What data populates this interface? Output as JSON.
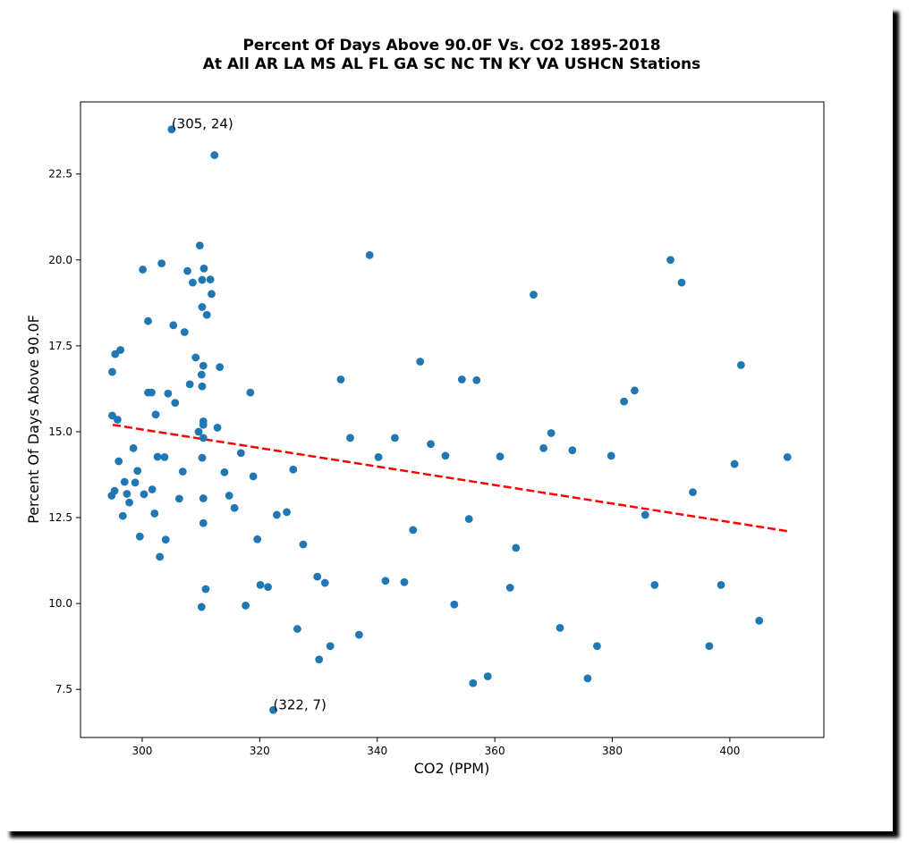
{
  "chart_data": {
    "type": "scatter",
    "title": "Percent Of Days Above 90.0F Vs. CO2 1895-2018",
    "subtitle": "At All AR LA MS AL FL GA SC NC TN KY VA USHCN Stations",
    "xlabel": "CO2 (PPM)",
    "ylabel": "Percent Of Days Above 90.0F",
    "xlim": [
      289.5,
      416
    ],
    "ylim": [
      6.1,
      24.6
    ],
    "xticks": [
      300,
      320,
      340,
      360,
      380,
      400
    ],
    "yticks": [
      7.5,
      10.0,
      12.5,
      15.0,
      17.5,
      20.0,
      22.5
    ],
    "grid": false,
    "colors": {
      "points": "#1f77b4",
      "trend": "#ff0000"
    },
    "points": [
      [
        305.0,
        23.8
      ],
      [
        312.3,
        23.05
      ],
      [
        309.8,
        20.42
      ],
      [
        300.1,
        19.72
      ],
      [
        303.3,
        19.9
      ],
      [
        307.7,
        19.68
      ],
      [
        310.5,
        19.75
      ],
      [
        308.6,
        19.34
      ],
      [
        310.2,
        19.42
      ],
      [
        311.6,
        19.43
      ],
      [
        311.8,
        19.01
      ],
      [
        310.2,
        18.63
      ],
      [
        311.0,
        18.4
      ],
      [
        301.0,
        18.22
      ],
      [
        305.3,
        18.1
      ],
      [
        307.2,
        17.9
      ],
      [
        296.3,
        17.38
      ],
      [
        295.4,
        17.26
      ],
      [
        309.1,
        17.16
      ],
      [
        310.4,
        16.92
      ],
      [
        313.2,
        16.88
      ],
      [
        294.9,
        16.74
      ],
      [
        310.1,
        16.66
      ],
      [
        308.1,
        16.38
      ],
      [
        310.2,
        16.32
      ],
      [
        301.0,
        16.14
      ],
      [
        301.6,
        16.14
      ],
      [
        304.4,
        16.11
      ],
      [
        318.4,
        16.14
      ],
      [
        305.6,
        15.84
      ],
      [
        302.3,
        15.5
      ],
      [
        294.9,
        15.47
      ],
      [
        295.8,
        15.35
      ],
      [
        310.4,
        15.3
      ],
      [
        310.4,
        15.2
      ],
      [
        312.8,
        15.12
      ],
      [
        309.6,
        15.0
      ],
      [
        310.4,
        14.82
      ],
      [
        298.5,
        14.52
      ],
      [
        302.6,
        14.27
      ],
      [
        303.8,
        14.26
      ],
      [
        310.2,
        14.24
      ],
      [
        296.0,
        14.14
      ],
      [
        299.2,
        13.86
      ],
      [
        306.9,
        13.84
      ],
      [
        314.0,
        13.82
      ],
      [
        316.8,
        14.38
      ],
      [
        318.9,
        13.7
      ],
      [
        297.0,
        13.54
      ],
      [
        298.8,
        13.52
      ],
      [
        301.7,
        13.32
      ],
      [
        295.3,
        13.28
      ],
      [
        297.4,
        13.19
      ],
      [
        300.3,
        13.18
      ],
      [
        294.8,
        13.14
      ],
      [
        310.4,
        13.06
      ],
      [
        306.3,
        13.05
      ],
      [
        314.8,
        13.14
      ],
      [
        297.8,
        12.94
      ],
      [
        315.7,
        12.78
      ],
      [
        302.1,
        12.62
      ],
      [
        296.7,
        12.55
      ],
      [
        310.4,
        12.34
      ],
      [
        299.6,
        11.95
      ],
      [
        304.0,
        11.86
      ],
      [
        319.6,
        11.87
      ],
      [
        303.0,
        11.36
      ],
      [
        310.8,
        10.42
      ],
      [
        320.1,
        10.54
      ],
      [
        321.4,
        10.48
      ],
      [
        310.1,
        9.9
      ],
      [
        317.6,
        9.94
      ],
      [
        322.3,
        6.9
      ],
      [
        325.7,
        13.9
      ],
      [
        322.9,
        12.58
      ],
      [
        324.6,
        12.66
      ],
      [
        327.4,
        11.72
      ],
      [
        326.4,
        9.26
      ],
      [
        329.8,
        10.78
      ],
      [
        331.1,
        10.6
      ],
      [
        330.1,
        8.37
      ],
      [
        332.0,
        8.76
      ],
      [
        333.8,
        16.52
      ],
      [
        335.4,
        14.82
      ],
      [
        336.9,
        9.09
      ],
      [
        338.7,
        20.14
      ],
      [
        340.2,
        14.26
      ],
      [
        341.4,
        10.66
      ],
      [
        343.0,
        14.82
      ],
      [
        344.6,
        10.62
      ],
      [
        346.1,
        12.14
      ],
      [
        347.3,
        17.04
      ],
      [
        349.1,
        14.64
      ],
      [
        351.6,
        14.3
      ],
      [
        353.1,
        9.97
      ],
      [
        354.4,
        16.52
      ],
      [
        355.6,
        12.46
      ],
      [
        356.3,
        7.68
      ],
      [
        356.9,
        16.5
      ],
      [
        358.8,
        7.88
      ],
      [
        360.9,
        14.28
      ],
      [
        362.6,
        10.46
      ],
      [
        363.6,
        11.62
      ],
      [
        366.6,
        18.99
      ],
      [
        368.3,
        14.52
      ],
      [
        369.6,
        14.96
      ],
      [
        371.1,
        9.29
      ],
      [
        373.2,
        14.46
      ],
      [
        375.8,
        7.82
      ],
      [
        377.4,
        8.76
      ],
      [
        379.8,
        14.3
      ],
      [
        382.0,
        15.88
      ],
      [
        383.8,
        16.2
      ],
      [
        385.6,
        12.58
      ],
      [
        387.2,
        10.54
      ],
      [
        389.9,
        20.0
      ],
      [
        391.8,
        19.34
      ],
      [
        393.7,
        13.24
      ],
      [
        396.5,
        8.76
      ],
      [
        398.5,
        10.54
      ],
      [
        400.8,
        14.06
      ],
      [
        401.9,
        16.94
      ],
      [
        405.0,
        9.5
      ],
      [
        409.8,
        14.26
      ]
    ],
    "trend_line": {
      "x": [
        295,
        410
      ],
      "y": [
        15.2,
        12.1
      ]
    },
    "annotations": [
      {
        "text": "(305, 24)",
        "x": 305.0,
        "y": 23.8
      },
      {
        "text": "(322, 7)",
        "x": 322.3,
        "y": 6.9
      }
    ]
  }
}
